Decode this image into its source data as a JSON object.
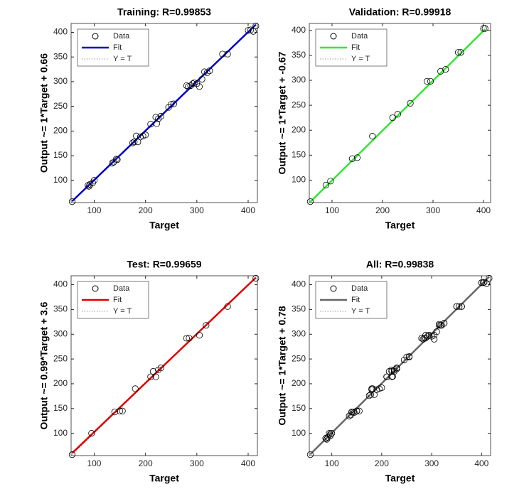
{
  "chart_data": [
    {
      "type": "scatter",
      "title": "Training: R=0.99853",
      "xlabel": "Target",
      "ylabel": "Output ~= 1*Target + 0.66",
      "xlim": [
        55,
        418
      ],
      "ylim": [
        55,
        418
      ],
      "xticks": [
        100,
        200,
        300,
        400
      ],
      "yticks": [
        100,
        150,
        200,
        250,
        300,
        350,
        400
      ],
      "legend": "upper left",
      "grid": false,
      "series": [
        {
          "name": "Data",
          "color": "#000000",
          "marker": "circle",
          "x": [
            57,
            88,
            90,
            92,
            97,
            100,
            135,
            138,
            143,
            145,
            175,
            178,
            182,
            185,
            190,
            195,
            200,
            210,
            220,
            222,
            225,
            230,
            245,
            250,
            255,
            280,
            283,
            288,
            292,
            295,
            300,
            305,
            310,
            315,
            320,
            325,
            350,
            360,
            400,
            405,
            410,
            415
          ],
          "values": [
            57,
            90,
            88,
            92,
            95,
            100,
            135,
            137,
            143,
            142,
            176,
            178,
            190,
            178,
            188,
            190,
            192,
            214,
            228,
            215,
            225,
            230,
            248,
            254,
            255,
            292,
            290,
            292,
            296,
            298,
            296,
            290,
            305,
            320,
            318,
            322,
            356,
            356,
            404,
            405,
            402,
            413
          ]
        },
        {
          "name": "Fit",
          "color": "#0000c8",
          "style": "solid",
          "x": [
            57,
            415
          ],
          "values": [
            57.66,
            415.66
          ]
        },
        {
          "name": "Y = T",
          "color": "#999999",
          "style": "dotted",
          "x": [
            57,
            415
          ],
          "values": [
            57,
            415
          ]
        }
      ]
    },
    {
      "type": "scatter",
      "title": "Validation: R=0.99918",
      "xlabel": "Target",
      "ylabel": "Output ~= 1*Target + -0.67",
      "xlim": [
        55,
        414
      ],
      "ylim": [
        55,
        414
      ],
      "xticks": [
        100,
        200,
        300,
        400
      ],
      "yticks": [
        100,
        150,
        200,
        250,
        300,
        350,
        400
      ],
      "legend": "upper left",
      "grid": false,
      "series": [
        {
          "name": "Data",
          "color": "#000000",
          "marker": "circle",
          "x": [
            57,
            88,
            97,
            140,
            150,
            180,
            220,
            230,
            255,
            288,
            295,
            315,
            325,
            350,
            355,
            400,
            403
          ],
          "values": [
            57,
            90,
            98,
            143,
            145,
            188,
            225,
            232,
            254,
            298,
            298,
            318,
            322,
            356,
            356,
            404,
            404
          ]
        },
        {
          "name": "Fit",
          "color": "#33e633",
          "style": "solid",
          "x": [
            57,
            403
          ],
          "values": [
            56.33,
            402.33
          ]
        },
        {
          "name": "Y = T",
          "color": "#999999",
          "style": "dotted",
          "x": [
            57,
            403
          ],
          "values": [
            57,
            403
          ]
        }
      ]
    },
    {
      "type": "scatter",
      "title": "Test: R=0.99659",
      "xlabel": "Target",
      "ylabel": "Output ~= 0.99*Target + 3.6",
      "xlim": [
        55,
        418
      ],
      "ylim": [
        55,
        418
      ],
      "xticks": [
        100,
        200,
        300,
        400
      ],
      "yticks": [
        100,
        150,
        200,
        250,
        300,
        350,
        400
      ],
      "legend": "upper left",
      "grid": false,
      "series": [
        {
          "name": "Data",
          "color": "#000000",
          "marker": "circle",
          "x": [
            57,
            95,
            140,
            150,
            155,
            180,
            210,
            215,
            220,
            225,
            230,
            280,
            285,
            305,
            318,
            360,
            415
          ],
          "values": [
            57,
            100,
            143,
            145,
            145,
            190,
            214,
            225,
            214,
            228,
            232,
            292,
            292,
            298,
            318,
            356,
            413
          ]
        },
        {
          "name": "Fit",
          "color": "#e00000",
          "style": "solid",
          "x": [
            57,
            415
          ],
          "values": [
            60.03,
            414.45
          ]
        },
        {
          "name": "Y = T",
          "color": "#999999",
          "style": "dotted",
          "x": [
            57,
            415
          ],
          "values": [
            57,
            415
          ]
        }
      ]
    },
    {
      "type": "scatter",
      "title": "All: R=0.99838",
      "xlabel": "Target",
      "ylabel": "Output ~= 1*Target + 0.78",
      "xlim": [
        55,
        418
      ],
      "ylim": [
        55,
        418
      ],
      "xticks": [
        100,
        200,
        300,
        400
      ],
      "yticks": [
        100,
        150,
        200,
        250,
        300,
        350,
        400
      ],
      "legend": "upper left",
      "grid": false,
      "series": [
        {
          "name": "Data",
          "color": "#000000",
          "marker": "circle",
          "x": [
            57,
            88,
            90,
            92,
            97,
            100,
            135,
            138,
            143,
            145,
            175,
            178,
            182,
            185,
            190,
            195,
            200,
            210,
            220,
            222,
            225,
            230,
            245,
            250,
            255,
            280,
            283,
            288,
            292,
            295,
            300,
            305,
            310,
            315,
            320,
            325,
            350,
            360,
            400,
            405,
            410,
            415,
            88,
            97,
            140,
            150,
            180,
            220,
            230,
            255,
            288,
            295,
            315,
            325,
            350,
            355,
            400,
            403,
            95,
            140,
            150,
            155,
            180,
            210,
            215,
            220,
            225,
            230,
            280,
            285,
            305,
            318,
            360
          ],
          "values": [
            57,
            90,
            88,
            92,
            95,
            100,
            135,
            137,
            143,
            142,
            176,
            178,
            190,
            178,
            188,
            190,
            192,
            214,
            228,
            215,
            225,
            230,
            248,
            254,
            255,
            292,
            290,
            292,
            296,
            298,
            296,
            290,
            305,
            320,
            318,
            322,
            356,
            356,
            404,
            405,
            402,
            413,
            90,
            98,
            143,
            145,
            188,
            225,
            232,
            254,
            298,
            298,
            318,
            322,
            356,
            356,
            404,
            404,
            100,
            143,
            145,
            145,
            190,
            214,
            225,
            214,
            228,
            232,
            292,
            292,
            298,
            318,
            356
          ]
        },
        {
          "name": "Fit",
          "color": "#666666",
          "style": "solid",
          "x": [
            57,
            415
          ],
          "values": [
            57.78,
            415.78
          ]
        },
        {
          "name": "Y = T",
          "color": "#999999",
          "style": "dotted",
          "x": [
            57,
            415
          ],
          "values": [
            57,
            415
          ]
        }
      ]
    }
  ]
}
